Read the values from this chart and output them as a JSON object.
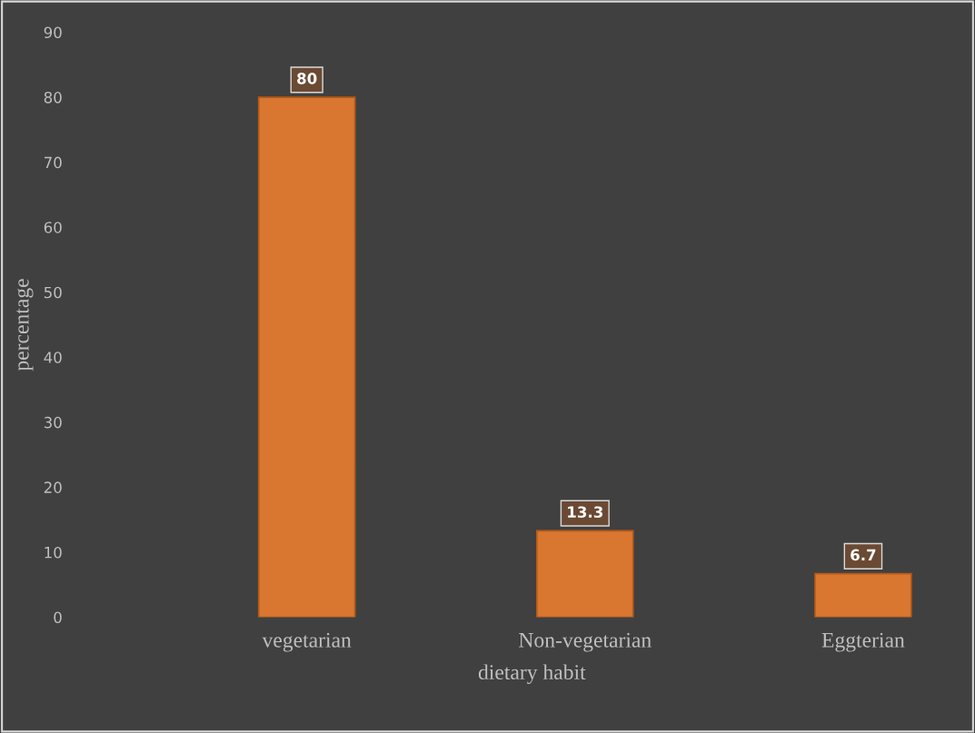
{
  "chart_data": {
    "type": "bar",
    "xlabel": "dietary habit",
    "ylabel": "percentage",
    "categories": [
      "vegetarian",
      "Non-vegetarian",
      "Eggterian"
    ],
    "values": [
      80,
      13.3,
      6.7
    ],
    "color": "#d9762f",
    "ylim": [
      0,
      90
    ],
    "yticks": [
      0,
      10,
      20,
      30,
      40,
      50,
      60,
      70,
      80,
      90
    ],
    "grid": false,
    "data_labels": true
  }
}
